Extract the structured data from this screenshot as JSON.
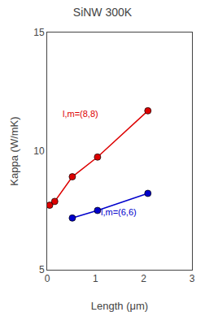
{
  "chart_data": {
    "type": "line",
    "title": "SiNW 300K",
    "x_label": "Length (μm)",
    "y_label": "Kappa (W/mK)",
    "series": [
      {
        "color": "#dd0000",
        "marker": "circle",
        "x": [
          0.052,
          0.156,
          0.521,
          1.043,
          2.086
        ],
        "values": [
          7.72,
          7.88,
          8.92,
          9.75,
          11.7
        ]
      },
      {
        "color": "#0000cc",
        "marker": "circle",
        "x": [
          0.521,
          1.043,
          2.086
        ],
        "values": [
          7.18,
          7.5,
          8.22
        ]
      }
    ],
    "annotations": [
      {
        "text": "l,m=(8,8)",
        "x": 0.28,
        "y": 11.3,
        "color": "#dd0000"
      },
      {
        "text": "l,m=(6,6)",
        "x": 1.08,
        "y": 7.15,
        "color": "#0000cc"
      }
    ],
    "xlim": [
      0,
      3
    ],
    "ylim": [
      5,
      15
    ],
    "xticks": [
      0,
      1,
      2,
      3
    ],
    "yticks": [
      5,
      10,
      15
    ],
    "grid": false
  }
}
